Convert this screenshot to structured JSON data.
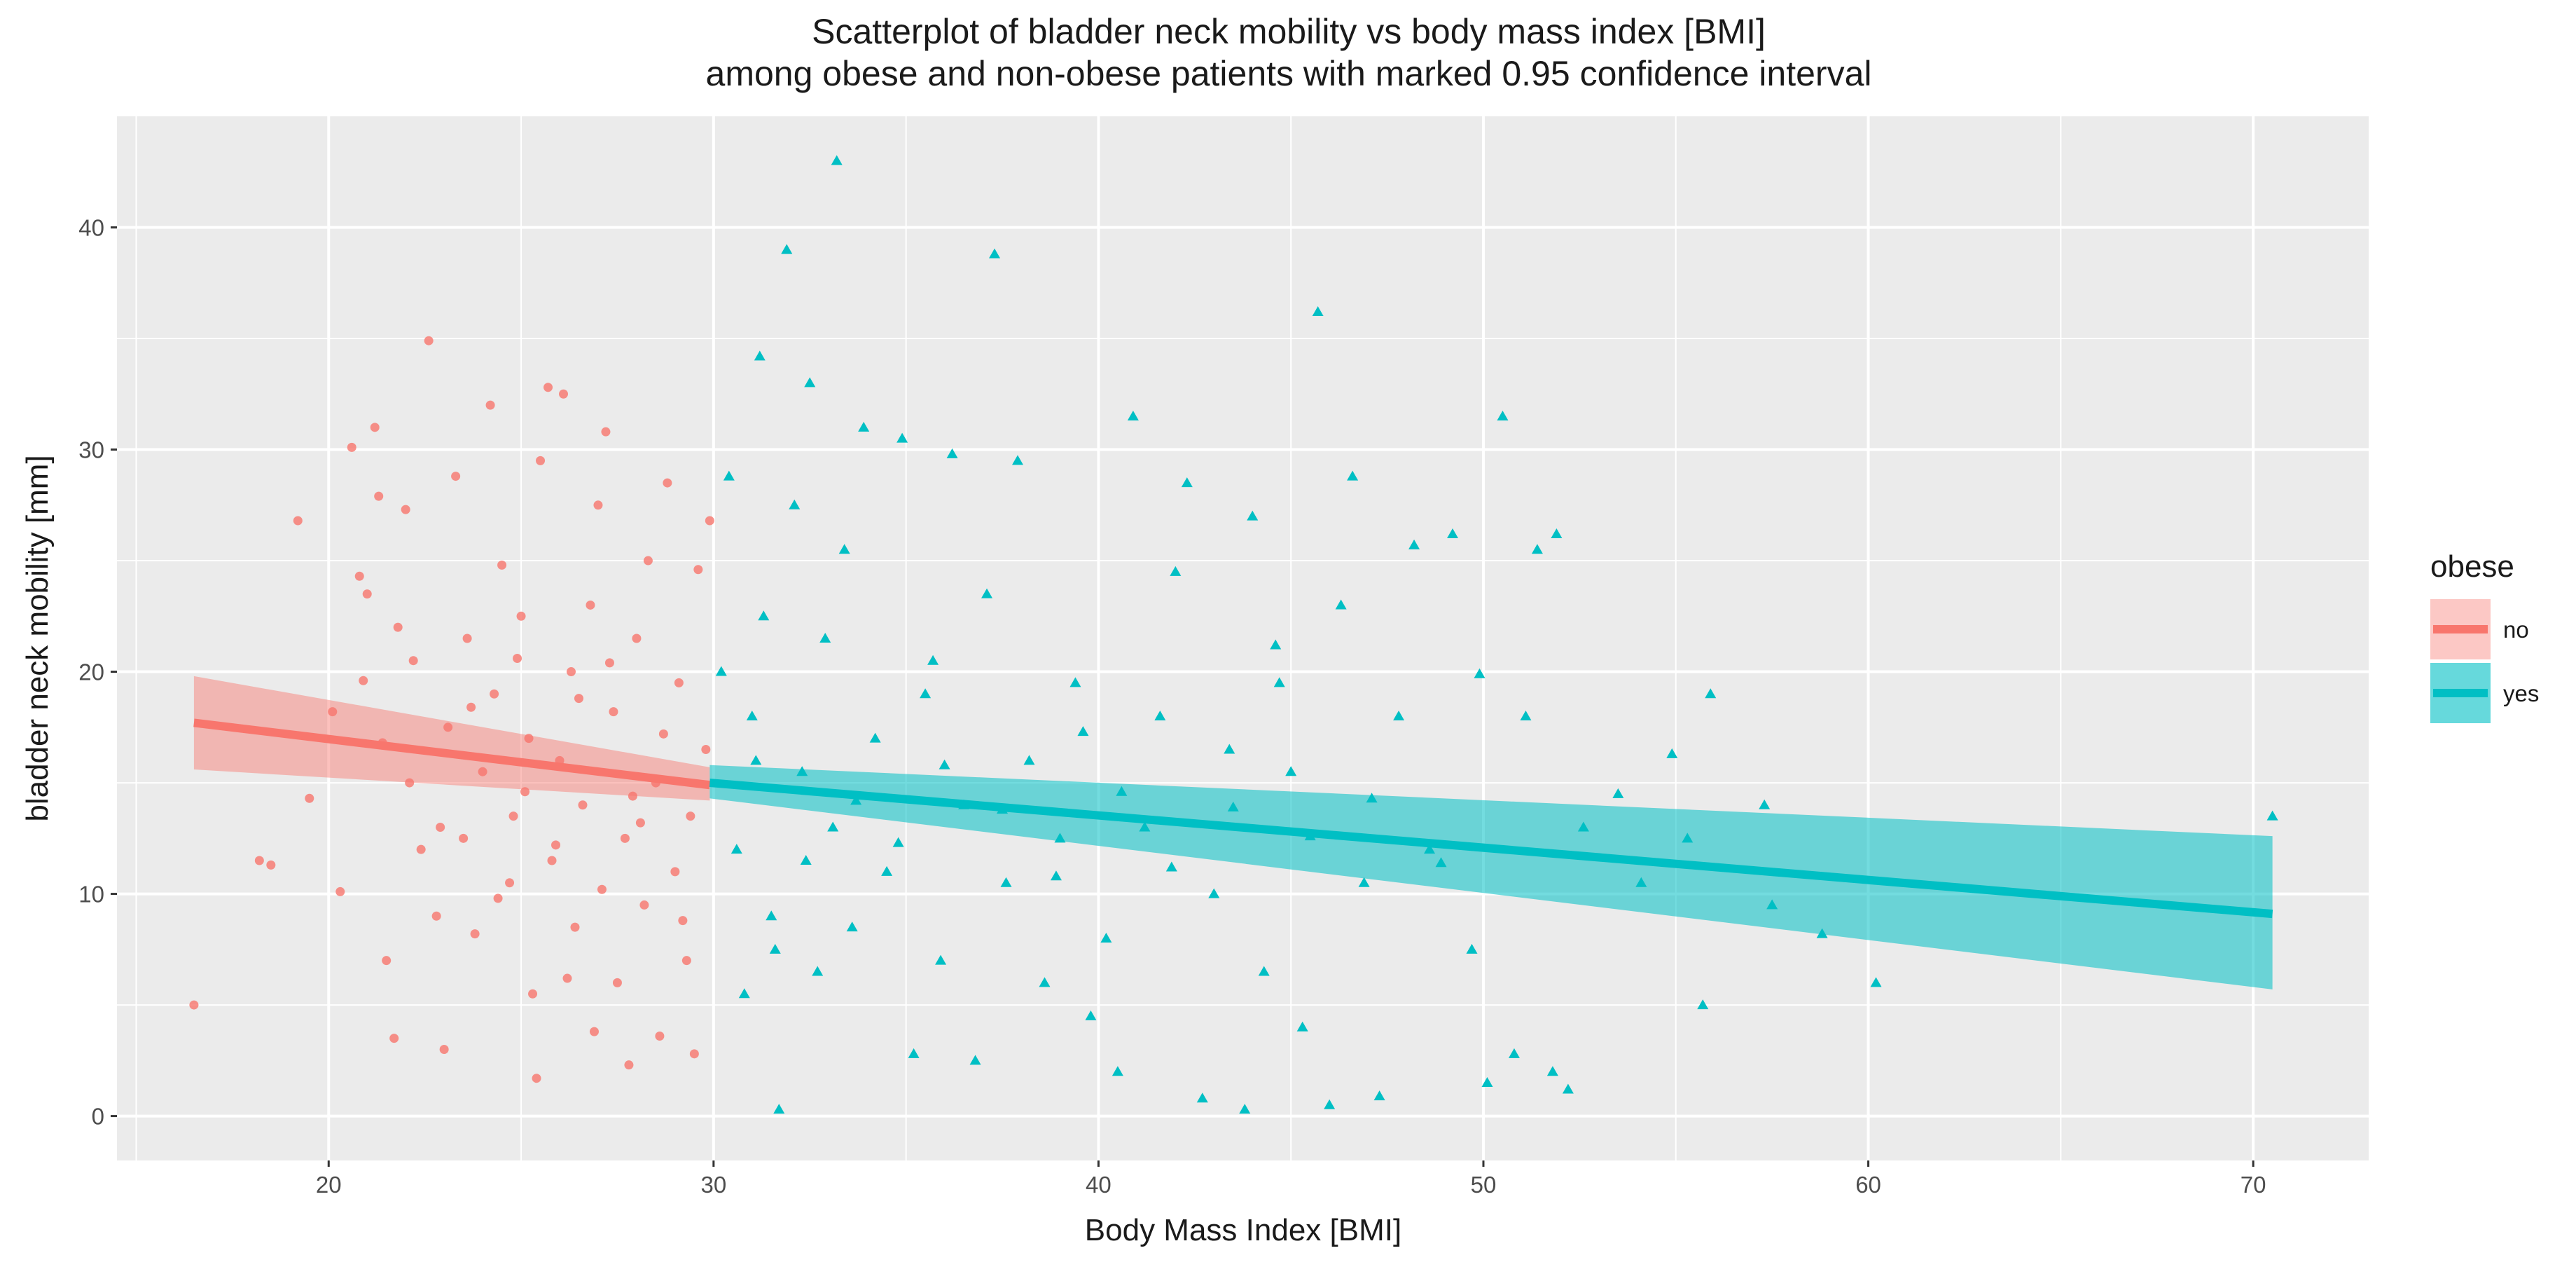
{
  "chart_data": {
    "type": "scatter",
    "title_line1": "Scatterplot of bladder neck mobility vs body mass index [BMI]",
    "title_line2": "among obese and non-obese patients with marked 0.95 confidence interval",
    "xlabel": "Body Mass Index [BMI]",
    "ylabel": "bladder neck mobility [mm]",
    "xlim": [
      14.5,
      73
    ],
    "ylim": [
      -2,
      45
    ],
    "x_ticks": [
      20,
      30,
      40,
      50,
      60,
      70
    ],
    "y_ticks": [
      0,
      10,
      20,
      30,
      40
    ],
    "x_tick_labels": [
      "20",
      "30",
      "40",
      "50",
      "60",
      "70"
    ],
    "y_tick_labels": [
      "0",
      "10",
      "20",
      "30",
      "40"
    ],
    "legend": {
      "title": "obese",
      "position": "right",
      "items": [
        {
          "label": "no",
          "color": "#f8766d"
        },
        {
          "label": "yes",
          "color": "#00bfc4"
        }
      ]
    },
    "colors": {
      "no": "#f8766d",
      "yes": "#00bfc4",
      "panel": "#ebebeb",
      "grid": "#ffffff"
    },
    "series": [
      {
        "name": "no",
        "marker": "circle",
        "fit": {
          "x": [
            16.5,
            29.9
          ],
          "y": [
            17.7,
            14.9
          ],
          "ci_lower": [
            15.6,
            14.2
          ],
          "ci_upper": [
            19.8,
            15.7
          ]
        },
        "points": [
          [
            16.5,
            5
          ],
          [
            18.2,
            11.5
          ],
          [
            18.5,
            11.3
          ],
          [
            19.2,
            26.8
          ],
          [
            19.5,
            14.3
          ],
          [
            20.1,
            18.2
          ],
          [
            20.3,
            10.1
          ],
          [
            20.6,
            30.1
          ],
          [
            20.8,
            24.3
          ],
          [
            21.0,
            23.5
          ],
          [
            21.2,
            31
          ],
          [
            21.3,
            27.9
          ],
          [
            21.5,
            7
          ],
          [
            21.7,
            3.5
          ],
          [
            21.8,
            22
          ],
          [
            22.0,
            27.3
          ],
          [
            22.2,
            20.5
          ],
          [
            22.4,
            12
          ],
          [
            22.6,
            34.9
          ],
          [
            22.8,
            9
          ],
          [
            23.0,
            3
          ],
          [
            23.1,
            17.5
          ],
          [
            23.3,
            28.8
          ],
          [
            23.5,
            12.5
          ],
          [
            23.6,
            21.5
          ],
          [
            23.8,
            8.2
          ],
          [
            24.0,
            15.5
          ],
          [
            24.2,
            32
          ],
          [
            24.3,
            19
          ],
          [
            24.5,
            24.8
          ],
          [
            24.7,
            10.5
          ],
          [
            24.8,
            13.5
          ],
          [
            25.0,
            22.5
          ],
          [
            25.2,
            17
          ],
          [
            25.3,
            5.5
          ],
          [
            25.4,
            1.7
          ],
          [
            25.5,
            29.5
          ],
          [
            25.7,
            32.8
          ],
          [
            25.8,
            11.5
          ],
          [
            26.0,
            16
          ],
          [
            26.1,
            32.5
          ],
          [
            26.3,
            20
          ],
          [
            26.4,
            8.5
          ],
          [
            26.6,
            14
          ],
          [
            26.8,
            23
          ],
          [
            26.9,
            3.8
          ],
          [
            27.0,
            27.5
          ],
          [
            27.2,
            30.8
          ],
          [
            27.4,
            18.2
          ],
          [
            27.5,
            6
          ],
          [
            27.7,
            12.5
          ],
          [
            27.8,
            2.3
          ],
          [
            28.0,
            21.5
          ],
          [
            28.2,
            9.5
          ],
          [
            28.3,
            25
          ],
          [
            28.5,
            15
          ],
          [
            28.6,
            3.6
          ],
          [
            28.8,
            28.5
          ],
          [
            29.0,
            11
          ],
          [
            29.1,
            19.5
          ],
          [
            29.3,
            7
          ],
          [
            29.4,
            13.5
          ],
          [
            29.5,
            2.8
          ],
          [
            29.6,
            24.6
          ],
          [
            29.8,
            16.5
          ],
          [
            29.9,
            26.8
          ],
          [
            22.1,
            15
          ],
          [
            22.9,
            13
          ],
          [
            23.7,
            18.4
          ],
          [
            24.4,
            9.8
          ],
          [
            25.1,
            14.6
          ],
          [
            25.9,
            12.2
          ],
          [
            26.5,
            18.8
          ],
          [
            27.1,
            10.2
          ],
          [
            27.9,
            14.4
          ],
          [
            28.7,
            17.2
          ],
          [
            29.2,
            8.8
          ],
          [
            21.4,
            16.8
          ],
          [
            20.9,
            19.6
          ],
          [
            24.9,
            20.6
          ],
          [
            26.2,
            6.2
          ],
          [
            27.3,
            20.4
          ],
          [
            28.1,
            13.2
          ]
        ]
      },
      {
        "name": "yes",
        "marker": "triangle",
        "fit": {
          "x": [
            29.9,
            70.5
          ],
          "y": [
            15.0,
            9.1
          ],
          "ci_lower": [
            14.3,
            5.7
          ],
          "ci_upper": [
            15.8,
            12.6
          ]
        },
        "points": [
          [
            30.2,
            20
          ],
          [
            30.4,
            28.8
          ],
          [
            30.6,
            12
          ],
          [
            30.8,
            5.5
          ],
          [
            31.0,
            18
          ],
          [
            31.2,
            34.2
          ],
          [
            31.3,
            22.5
          ],
          [
            31.5,
            9
          ],
          [
            31.7,
            0.3
          ],
          [
            31.9,
            39
          ],
          [
            32.1,
            27.5
          ],
          [
            32.3,
            15.5
          ],
          [
            32.5,
            33
          ],
          [
            32.7,
            6.5
          ],
          [
            32.9,
            21.5
          ],
          [
            33.1,
            13
          ],
          [
            33.2,
            43
          ],
          [
            33.4,
            25.5
          ],
          [
            33.6,
            8.5
          ],
          [
            33.9,
            31
          ],
          [
            34.2,
            17
          ],
          [
            34.5,
            11
          ],
          [
            34.9,
            30.5
          ],
          [
            35.2,
            2.8
          ],
          [
            35.5,
            19
          ],
          [
            35.9,
            7
          ],
          [
            36.2,
            29.8
          ],
          [
            36.5,
            14
          ],
          [
            36.8,
            2.5
          ],
          [
            37.1,
            23.5
          ],
          [
            37.3,
            38.8
          ],
          [
            37.6,
            10.5
          ],
          [
            37.9,
            29.5
          ],
          [
            38.2,
            16
          ],
          [
            38.6,
            6
          ],
          [
            39.0,
            12.5
          ],
          [
            39.4,
            19.5
          ],
          [
            39.8,
            4.5
          ],
          [
            40.2,
            8
          ],
          [
            40.5,
            2
          ],
          [
            40.9,
            31.5
          ],
          [
            41.2,
            13
          ],
          [
            41.6,
            18
          ],
          [
            42.0,
            24.5
          ],
          [
            42.3,
            28.5
          ],
          [
            42.7,
            0.8
          ],
          [
            43.0,
            10
          ],
          [
            43.4,
            16.5
          ],
          [
            43.8,
            0.3
          ],
          [
            44.0,
            27
          ],
          [
            44.3,
            6.5
          ],
          [
            44.7,
            19.5
          ],
          [
            45.0,
            15.5
          ],
          [
            45.3,
            4
          ],
          [
            45.7,
            36.2
          ],
          [
            46.0,
            0.5
          ],
          [
            46.3,
            23
          ],
          [
            46.6,
            28.8
          ],
          [
            46.9,
            10.5
          ],
          [
            47.3,
            0.9
          ],
          [
            47.8,
            18
          ],
          [
            48.2,
            25.7
          ],
          [
            48.6,
            12
          ],
          [
            49.2,
            26.2
          ],
          [
            49.7,
            7.5
          ],
          [
            50.1,
            1.5
          ],
          [
            50.5,
            31.5
          ],
          [
            50.8,
            2.8
          ],
          [
            51.1,
            18
          ],
          [
            51.4,
            25.5
          ],
          [
            51.8,
            2
          ],
          [
            51.9,
            26.2
          ],
          [
            52.2,
            1.2
          ],
          [
            52.6,
            13
          ],
          [
            53.5,
            14.5
          ],
          [
            54.1,
            10.5
          ],
          [
            54.9,
            16.3
          ],
          [
            55.3,
            12.5
          ],
          [
            55.7,
            5
          ],
          [
            55.9,
            19
          ],
          [
            57.3,
            14
          ],
          [
            57.5,
            9.5
          ],
          [
            58.8,
            8.2
          ],
          [
            60.2,
            6
          ],
          [
            70.5,
            13.5
          ],
          [
            31.1,
            16
          ],
          [
            32.4,
            11.5
          ],
          [
            33.7,
            14.2
          ],
          [
            34.8,
            12.3
          ],
          [
            36.0,
            15.8
          ],
          [
            37.5,
            13.8
          ],
          [
            38.9,
            10.8
          ],
          [
            40.6,
            14.6
          ],
          [
            41.9,
            11.2
          ],
          [
            43.5,
            13.9
          ],
          [
            45.5,
            12.6
          ],
          [
            47.1,
            14.3
          ],
          [
            48.9,
            11.4
          ],
          [
            31.6,
            7.5
          ],
          [
            35.7,
            20.5
          ],
          [
            39.6,
            17.3
          ],
          [
            44.6,
            21.2
          ],
          [
            49.9,
            19.9
          ]
        ]
      }
    ]
  }
}
